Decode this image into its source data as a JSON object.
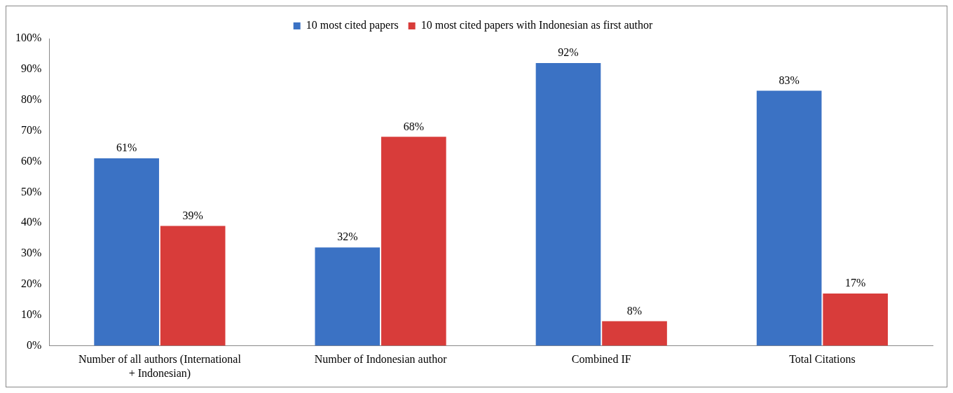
{
  "chart_data": {
    "type": "bar",
    "categories": [
      "Number of all authors (International + Indonesian)",
      "Number of Indonesian author",
      "Combined IF",
      "Total Citations"
    ],
    "series": [
      {
        "name": "10 most cited papers",
        "color": "#3b72c4",
        "values": [
          61,
          32,
          92,
          83
        ],
        "value_labels": [
          "61%",
          "32%",
          "92%",
          "83%"
        ]
      },
      {
        "name": "10 most cited papers with Indonesian as first author",
        "color": "#d83c3a",
        "values": [
          39,
          68,
          8,
          17
        ],
        "value_labels": [
          "39%",
          "68%",
          "8%",
          "17%"
        ]
      }
    ],
    "ylim": [
      0,
      100
    ],
    "yticks": [
      {
        "value": 0,
        "label": "0%"
      },
      {
        "value": 10,
        "label": "10%"
      },
      {
        "value": 20,
        "label": "20%"
      },
      {
        "value": 30,
        "label": "30%"
      },
      {
        "value": 40,
        "label": "40%"
      },
      {
        "value": 50,
        "label": "50%"
      },
      {
        "value": 60,
        "label": "60%"
      },
      {
        "value": 70,
        "label": "70%"
      },
      {
        "value": 80,
        "label": "80%"
      },
      {
        "value": 90,
        "label": "90%"
      },
      {
        "value": 100,
        "label": "100%"
      }
    ],
    "grid": false,
    "legend": "top"
  }
}
